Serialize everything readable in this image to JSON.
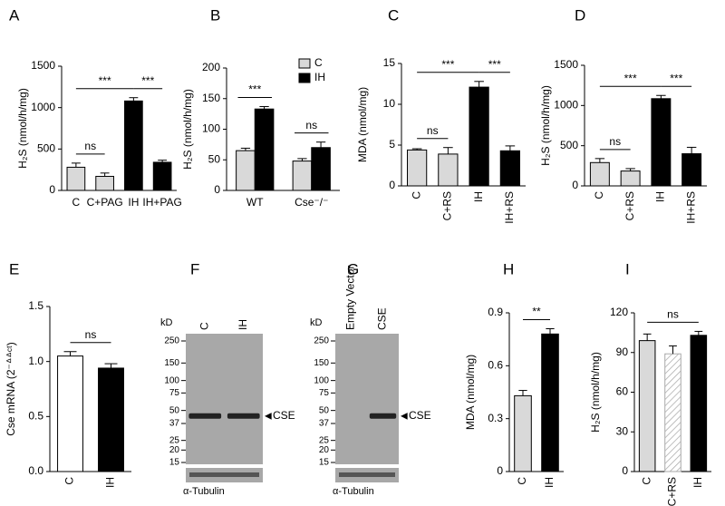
{
  "chart_data": [
    {
      "type": "bar",
      "panel": "A",
      "ylabel": "H₂S (nmol/h/mg)",
      "categories": [
        "C",
        "C+PAG",
        "IH",
        "IH+PAG"
      ],
      "values": [
        280,
        170,
        1080,
        340
      ],
      "errors": [
        50,
        40,
        40,
        25
      ],
      "colors": [
        "#d9d9d9",
        "#d9d9d9",
        "#000000",
        "#000000"
      ],
      "ylim": [
        0,
        1500
      ],
      "yticks": [
        0,
        500,
        1000,
        1500
      ],
      "xtick_rotation": 0,
      "annotations": [
        {
          "text": "ns",
          "between": [
            "C",
            "C+PAG"
          ]
        },
        {
          "text": "***",
          "between": [
            "C",
            "IH"
          ]
        },
        {
          "text": "***",
          "between": [
            "IH",
            "IH+PAG"
          ]
        }
      ]
    },
    {
      "type": "bar",
      "panel": "B",
      "ylabel": "H₂S (nmol/h/mg)",
      "categories": [
        "WT",
        "Cse⁻/⁻"
      ],
      "series": [
        {
          "name": "C",
          "color": "#d9d9d9",
          "values": [
            65,
            48
          ],
          "errors": [
            4,
            4
          ]
        },
        {
          "name": "IH",
          "color": "#000000",
          "values": [
            133,
            70
          ],
          "errors": [
            4,
            9
          ]
        }
      ],
      "ylim": [
        0,
        200
      ],
      "yticks": [
        0,
        50,
        100,
        150,
        200
      ],
      "xtick_rotation": 0,
      "legend": "upper right",
      "annotations": [
        {
          "text": "***",
          "category": "WT"
        },
        {
          "text": "ns",
          "category": "Cse⁻/⁻"
        }
      ]
    },
    {
      "type": "bar",
      "panel": "C",
      "ylabel": "MDA (nmol/mg)",
      "categories": [
        "C",
        "C+RS",
        "IH",
        "IH+RS"
      ],
      "values": [
        4.4,
        3.9,
        12.1,
        4.3
      ],
      "errors": [
        0.15,
        0.8,
        0.7,
        0.6
      ],
      "colors": [
        "#d9d9d9",
        "#d9d9d9",
        "#000000",
        "#000000"
      ],
      "ylim": [
        0,
        15
      ],
      "yticks": [
        0,
        5,
        10,
        15
      ],
      "xtick_rotation": 90,
      "annotations": [
        {
          "text": "ns",
          "between": [
            "C",
            "C+RS"
          ]
        },
        {
          "text": "***",
          "between": [
            "C",
            "IH"
          ]
        },
        {
          "text": "***",
          "between": [
            "IH",
            "IH+RS"
          ]
        }
      ]
    },
    {
      "type": "bar",
      "panel": "D",
      "ylabel": "H₂S (nmol/h/mg)",
      "categories": [
        "C",
        "C+RS",
        "IH",
        "IH+RS"
      ],
      "values": [
        290,
        185,
        1085,
        400
      ],
      "errors": [
        50,
        30,
        40,
        80
      ],
      "colors": [
        "#d9d9d9",
        "#d9d9d9",
        "#000000",
        "#000000"
      ],
      "ylim": [
        0,
        1500
      ],
      "yticks": [
        0,
        500,
        1000,
        1500
      ],
      "xtick_rotation": 90,
      "annotations": [
        {
          "text": "ns",
          "between": [
            "C",
            "C+RS"
          ]
        },
        {
          "text": "***",
          "between": [
            "C",
            "IH"
          ]
        },
        {
          "text": "***",
          "between": [
            "IH",
            "IH+RS"
          ]
        }
      ]
    },
    {
      "type": "bar",
      "panel": "E",
      "ylabel": "Cse mRNA (2⁻ᐞᐞᶜᵗ)",
      "categories": [
        "C",
        "IH"
      ],
      "values": [
        1.05,
        0.94
      ],
      "errors": [
        0.04,
        0.04
      ],
      "colors": [
        "#ffffff",
        "#000000"
      ],
      "ylim": [
        0,
        1.5
      ],
      "yticks": [
        {
          "value": 0,
          "label": "0.0"
        },
        0.5,
        {
          "value": 1,
          "label": "1.0"
        },
        1.5
      ],
      "xtick_rotation": 90,
      "annotations": [
        {
          "text": "ns",
          "between": [
            "C",
            "IH"
          ]
        }
      ]
    },
    {
      "type": "bar",
      "panel": "H",
      "ylabel": "MDA (nmol/mg)",
      "categories": [
        "C",
        "IH"
      ],
      "values": [
        0.43,
        0.78
      ],
      "errors": [
        0.03,
        0.03
      ],
      "colors": [
        "#d9d9d9",
        "#000000"
      ],
      "ylim": [
        0,
        0.9
      ],
      "yticks": [
        0,
        0.3,
        0.6,
        0.9
      ],
      "xtick_rotation": 90,
      "annotations": [
        {
          "text": "**",
          "between": [
            "C",
            "IH"
          ]
        }
      ]
    },
    {
      "type": "bar",
      "panel": "I",
      "ylabel": "H₂S (nmol/h/mg)",
      "categories": [
        "C",
        "C+RS",
        "IH"
      ],
      "values": [
        99,
        89,
        103
      ],
      "errors": [
        5,
        6,
        3
      ],
      "colors": [
        "#d9d9d9",
        "hatched",
        "#000000"
      ],
      "ylim": [
        0,
        120
      ],
      "yticks": [
        0,
        30,
        60,
        90,
        120
      ],
      "xtick_rotation": 90,
      "annotations": [
        {
          "text": "ns",
          "between": [
            "C",
            "IH"
          ]
        }
      ]
    }
  ],
  "blots": [
    {
      "panel": "F",
      "unit": "kD",
      "lanes": [
        "C",
        "IH"
      ],
      "markers": [
        250,
        150,
        100,
        75,
        50,
        37,
        25,
        20,
        15
      ],
      "bands": [
        true,
        true
      ],
      "band_label": "CSE",
      "loading_label": "α-Tubulin"
    },
    {
      "panel": "G",
      "unit": "kD",
      "lanes": [
        "Empty Vector",
        "CSE"
      ],
      "markers": [
        250,
        150,
        100,
        75,
        50,
        37,
        25,
        20,
        15
      ],
      "bands": [
        false,
        true
      ],
      "band_label": "CSE",
      "loading_label": "α-Tubulin"
    }
  ]
}
